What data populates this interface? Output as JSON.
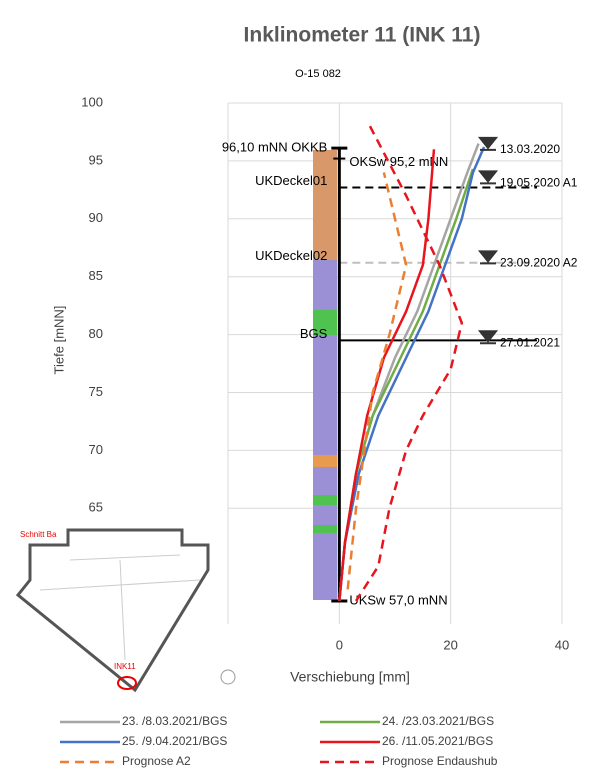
{
  "chart_data": {
    "type": "line",
    "title": "Inklinometer 11 (INK 11)",
    "subtitle": "O-15 082",
    "x_label": "Verschiebung  [mm]",
    "y_label": "Tiefe  [mNN]",
    "xlim": [
      -20,
      40
    ],
    "xticks": [
      0,
      20,
      40
    ],
    "ylim": [
      55,
      100
    ],
    "yticks": [
      65,
      70,
      75,
      80,
      85,
      90,
      95,
      100
    ],
    "grid": true,
    "series": [
      {
        "name": "23. /8.03.2021/BGS",
        "color": "#a5a5a5",
        "style": "solid",
        "x": [
          0,
          1,
          3,
          6,
          10,
          14,
          17,
          20,
          23,
          25
        ],
        "values": [
          57,
          62,
          68,
          73,
          78,
          82,
          86,
          90,
          94,
          96.5
        ]
      },
      {
        "name": "24. /23.03.2021/BGS",
        "color": "#70ad47",
        "style": "solid",
        "x": [
          0,
          1,
          3,
          6,
          11,
          15,
          18,
          21,
          24
        ],
        "values": [
          57,
          62,
          68,
          73,
          78,
          82,
          86,
          90,
          94.3
        ]
      },
      {
        "name": "25. /9.04.2021/BGS",
        "color": "#4472c4",
        "style": "solid",
        "x": [
          0,
          1,
          3.5,
          7,
          12,
          16,
          19,
          22,
          24,
          26
        ],
        "values": [
          57,
          62,
          68,
          73,
          78,
          82,
          86,
          90,
          94,
          96.2
        ]
      },
      {
        "name": "26. /11.05.2021/BGS",
        "color": "#e8141e",
        "style": "solid",
        "x": [
          0,
          1,
          3,
          5,
          8,
          12,
          15,
          16,
          16.5,
          17
        ],
        "values": [
          57,
          62,
          68,
          73,
          78,
          82,
          86,
          90,
          93,
          96
        ]
      },
      {
        "name": "Prognose A2",
        "color": "#ed7d31",
        "style": "dashed",
        "x": [
          1.5,
          3,
          6,
          9,
          12,
          10,
          8
        ],
        "values": [
          58,
          65,
          75,
          80,
          86,
          90,
          94
        ]
      },
      {
        "name": "Prognose Endaushub",
        "color": "#e8141e",
        "style": "dashed",
        "x": [
          5.5,
          12,
          18,
          22,
          20,
          15,
          12,
          9,
          7,
          3
        ],
        "values": [
          98,
          92,
          86,
          81,
          77,
          73,
          70,
          65,
          60,
          57
        ]
      }
    ],
    "wall": {
      "top_label": "96,10 mNN OKKB",
      "top": 96.1,
      "bottom_label": "UKSw 57,0 mNN",
      "bottom": 57,
      "sw_label": "OKSw 95,2 mNN",
      "sw": 95.2
    },
    "levels": [
      {
        "label": "UKDeckel01",
        "value": 92.7,
        "color": "#000000",
        "style": "dashed"
      },
      {
        "label": "UKDeckel02",
        "value": 86.2,
        "color": "#bfbfbf",
        "style": "dashed"
      },
      {
        "label": "BGS",
        "value": 79.5,
        "color": "#000000",
        "style": "solid"
      }
    ],
    "stages": [
      {
        "label": "13.03.2020",
        "value": 96.3
      },
      {
        "label": "19.05.2020 A1",
        "value": 93.4
      },
      {
        "label": "23.09.2020 A2",
        "value": 86.5
      },
      {
        "label": "27.01.2021",
        "value": 79.6
      }
    ],
    "inset": {
      "title": "Schnitt Ba",
      "marker": "INK11"
    }
  }
}
